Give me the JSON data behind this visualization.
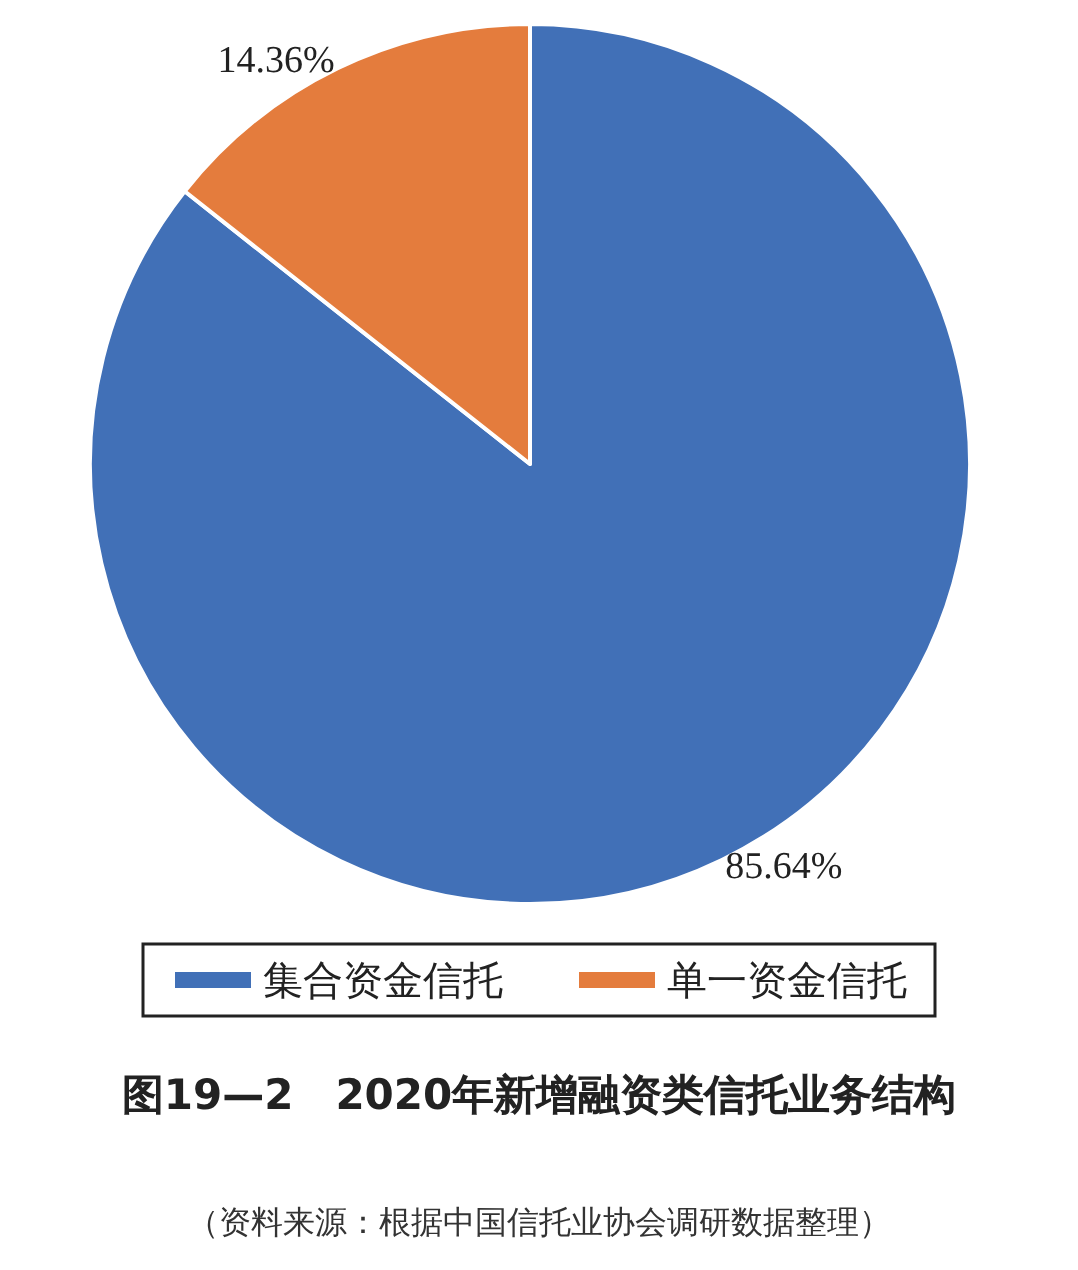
{
  "chart_data": {
    "type": "pie",
    "title": "图19—2　2020年新增融资类信托业务结构",
    "annotations": [
      "（资料来源：根据中国信托业协会调研数据整理）"
    ],
    "categories": [
      "集合资金信托",
      "单一资金信托"
    ],
    "values": [
      85.64,
      14.36
    ],
    "colors": [
      "#4170b7",
      "#e47c3d"
    ],
    "value_labels": [
      "85.64%",
      "14.36%"
    ],
    "legend": "bottom"
  }
}
